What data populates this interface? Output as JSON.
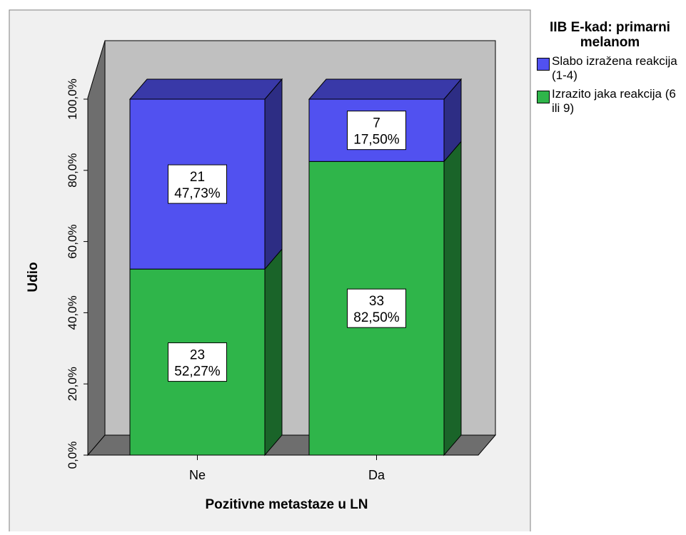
{
  "chart_data": {
    "type": "bar",
    "stacked": true,
    "three_d": true,
    "categories": [
      "Ne",
      "Da"
    ],
    "xlabel": "Pozitivne metastaze u LN",
    "ylabel": "Udio",
    "ylim": [
      0,
      100
    ],
    "yticks": [
      "0,0%",
      "20,0%",
      "40,0%",
      "60,0%",
      "80,0%",
      "100,0%"
    ],
    "yticks_values": [
      0,
      20,
      40,
      60,
      80,
      100
    ],
    "legend_title": "IIB E-kad: primarni melanom",
    "legend_placement": "right",
    "series": [
      {
        "name": "Izrazito jaka reakcija (6 ili 9)",
        "color": "#2fb54a",
        "values": [
          52.27,
          82.5
        ],
        "counts": [
          "23",
          "33"
        ],
        "percent_labels": [
          "52,27%",
          "82,50%"
        ]
      },
      {
        "name": "Slabo izražena reakcija (1-4)",
        "color": "#5151f0",
        "values": [
          47.73,
          17.5
        ],
        "counts": [
          "21",
          "7"
        ],
        "percent_labels": [
          "47,73%",
          "17,50%"
        ]
      }
    ]
  }
}
